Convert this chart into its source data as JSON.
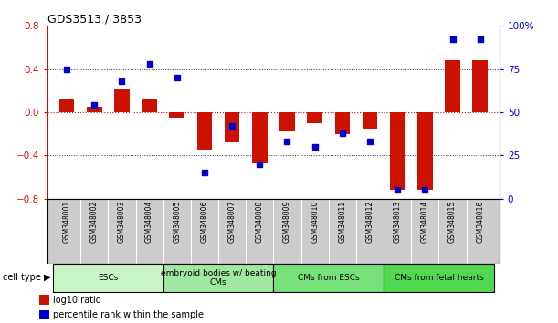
{
  "title": "GDS3513 / 3853",
  "samples": [
    "GSM348001",
    "GSM348002",
    "GSM348003",
    "GSM348004",
    "GSM348005",
    "GSM348006",
    "GSM348007",
    "GSM348008",
    "GSM348009",
    "GSM348010",
    "GSM348011",
    "GSM348012",
    "GSM348013",
    "GSM348014",
    "GSM348015",
    "GSM348016"
  ],
  "log10_ratio": [
    0.13,
    0.05,
    0.22,
    0.13,
    -0.05,
    -0.35,
    -0.28,
    -0.47,
    -0.18,
    -0.1,
    -0.2,
    -0.15,
    -0.72,
    -0.72,
    0.48,
    0.48
  ],
  "percentile_rank": [
    75,
    54,
    68,
    78,
    70,
    15,
    42,
    20,
    33,
    30,
    38,
    33,
    5,
    5,
    92,
    92
  ],
  "cell_type_groups": [
    {
      "label": "ESCs",
      "start": 0,
      "end": 3,
      "color": "#c8f5c8"
    },
    {
      "label": "embryoid bodies w/ beating\nCMs",
      "start": 4,
      "end": 7,
      "color": "#a0e8a0"
    },
    {
      "label": "CMs from ESCs",
      "start": 8,
      "end": 11,
      "color": "#78e078"
    },
    {
      "label": "CMs from fetal hearts",
      "start": 12,
      "end": 15,
      "color": "#50d850"
    }
  ],
  "bar_color": "#cc1100",
  "dot_color": "#0000cc",
  "ylim_left": [
    -0.8,
    0.8
  ],
  "ylim_right": [
    0,
    100
  ],
  "yticks_left": [
    -0.8,
    -0.4,
    0.0,
    0.4,
    0.8
  ],
  "yticks_right": [
    0,
    25,
    50,
    75,
    100
  ],
  "ytick_labels_right": [
    "0",
    "25",
    "50",
    "75",
    "100%"
  ],
  "hlines_dotted": [
    0.4,
    -0.4
  ],
  "hline_red_dotted": 0.0,
  "background_color": "#ffffff",
  "sample_box_color": "#cccccc",
  "cell_type_label": "cell type",
  "legend_items": [
    {
      "color": "#cc1100",
      "label": "log10 ratio"
    },
    {
      "color": "#0000cc",
      "label": "percentile rank within the sample"
    }
  ]
}
